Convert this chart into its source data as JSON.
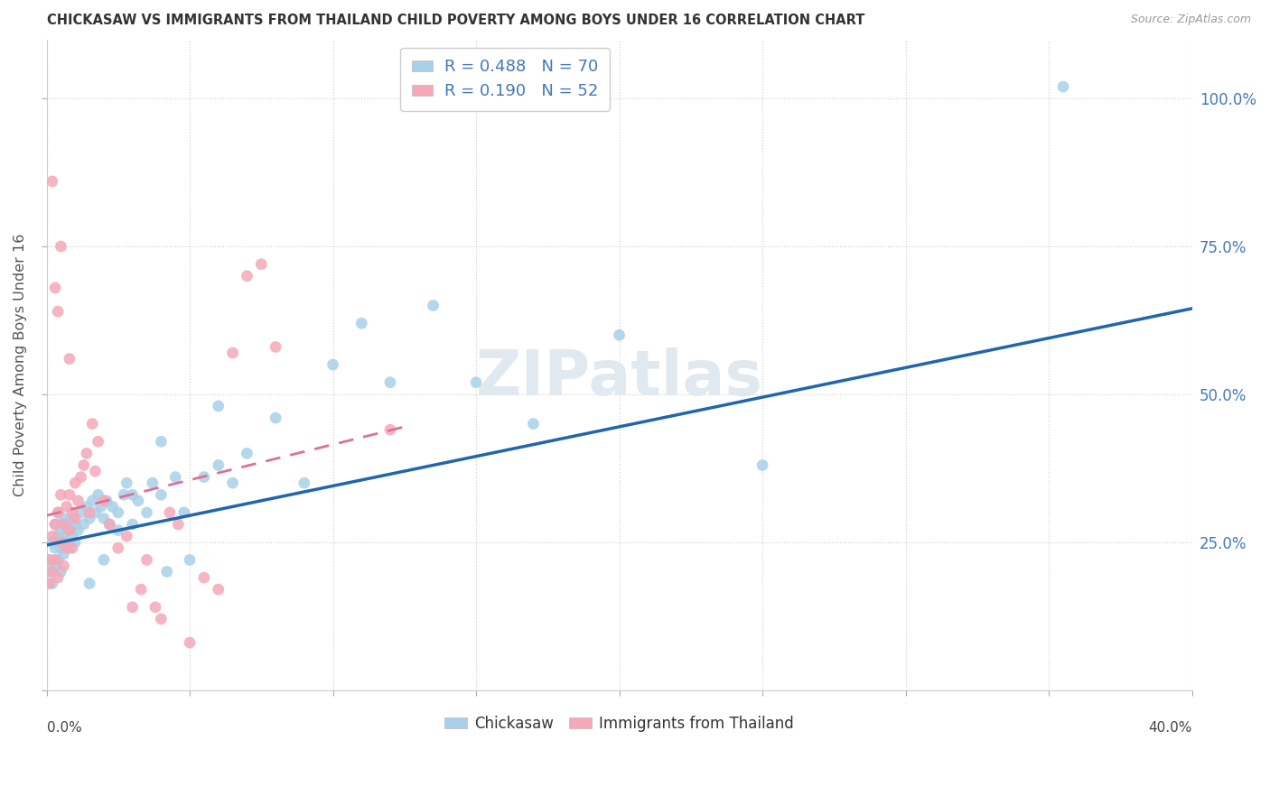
{
  "title": "CHICKASAW VS IMMIGRANTS FROM THAILAND CHILD POVERTY AMONG BOYS UNDER 16 CORRELATION CHART",
  "source": "Source: ZipAtlas.com",
  "ylabel": "Child Poverty Among Boys Under 16",
  "legend_label1": "Chickasaw",
  "legend_label2": "Immigrants from Thailand",
  "R1": 0.488,
  "N1": 70,
  "R2": 0.19,
  "N2": 52,
  "color_blue": "#a8d0e8",
  "color_pink": "#f4a8b8",
  "color_blue_line": "#2166ac",
  "color_pink_line": "#e07090",
  "color_blue_text": "#4477bb",
  "watermark": "ZIPatlas",
  "xlim": [
    0.0,
    0.4
  ],
  "ylim": [
    0.0,
    1.1
  ],
  "yticks": [
    0.0,
    0.25,
    0.5,
    0.75,
    1.0
  ],
  "yticklabels_right": [
    "",
    "25.0%",
    "50.0%",
    "75.0%",
    "100.0%"
  ],
  "blue_trend_x0": 0.0,
  "blue_trend_y0": 0.245,
  "blue_trend_x1": 0.4,
  "blue_trend_y1": 0.645,
  "pink_trend_x0": 0.0,
  "pink_trend_y0": 0.295,
  "pink_trend_x1": 0.125,
  "pink_trend_y1": 0.445,
  "chickasaw_x": [
    0.001,
    0.001,
    0.002,
    0.002,
    0.003,
    0.003,
    0.003,
    0.004,
    0.004,
    0.004,
    0.005,
    0.005,
    0.005,
    0.006,
    0.006,
    0.006,
    0.007,
    0.007,
    0.008,
    0.008,
    0.009,
    0.009,
    0.01,
    0.01,
    0.011,
    0.012,
    0.013,
    0.014,
    0.015,
    0.016,
    0.017,
    0.018,
    0.019,
    0.02,
    0.021,
    0.022,
    0.023,
    0.025,
    0.027,
    0.028,
    0.03,
    0.032,
    0.035,
    0.037,
    0.04,
    0.042,
    0.045,
    0.048,
    0.05,
    0.055,
    0.06,
    0.065,
    0.07,
    0.08,
    0.09,
    0.1,
    0.11,
    0.12,
    0.135,
    0.15,
    0.17,
    0.2,
    0.25,
    0.06,
    0.04,
    0.03,
    0.025,
    0.02,
    0.015,
    0.355
  ],
  "chickasaw_y": [
    0.2,
    0.22,
    0.18,
    0.25,
    0.21,
    0.24,
    0.28,
    0.22,
    0.26,
    0.3,
    0.2,
    0.24,
    0.27,
    0.23,
    0.26,
    0.29,
    0.25,
    0.28,
    0.24,
    0.27,
    0.26,
    0.29,
    0.25,
    0.28,
    0.27,
    0.3,
    0.28,
    0.31,
    0.29,
    0.32,
    0.3,
    0.33,
    0.31,
    0.29,
    0.32,
    0.28,
    0.31,
    0.3,
    0.33,
    0.35,
    0.28,
    0.32,
    0.3,
    0.35,
    0.33,
    0.2,
    0.36,
    0.3,
    0.22,
    0.36,
    0.38,
    0.35,
    0.4,
    0.46,
    0.35,
    0.55,
    0.62,
    0.52,
    0.65,
    0.52,
    0.45,
    0.6,
    0.38,
    0.48,
    0.42,
    0.33,
    0.27,
    0.22,
    0.18,
    1.02
  ],
  "thailand_x": [
    0.001,
    0.001,
    0.002,
    0.002,
    0.003,
    0.003,
    0.004,
    0.004,
    0.005,
    0.005,
    0.006,
    0.006,
    0.007,
    0.007,
    0.008,
    0.008,
    0.009,
    0.009,
    0.01,
    0.01,
    0.011,
    0.012,
    0.013,
    0.014,
    0.015,
    0.016,
    0.017,
    0.018,
    0.02,
    0.022,
    0.025,
    0.028,
    0.03,
    0.033,
    0.035,
    0.038,
    0.04,
    0.043,
    0.046,
    0.05,
    0.055,
    0.06,
    0.065,
    0.07,
    0.075,
    0.08,
    0.002,
    0.003,
    0.004,
    0.005,
    0.008,
    0.12
  ],
  "thailand_y": [
    0.18,
    0.22,
    0.2,
    0.26,
    0.22,
    0.28,
    0.19,
    0.3,
    0.25,
    0.33,
    0.21,
    0.28,
    0.24,
    0.31,
    0.27,
    0.33,
    0.24,
    0.3,
    0.29,
    0.35,
    0.32,
    0.36,
    0.38,
    0.4,
    0.3,
    0.45,
    0.37,
    0.42,
    0.32,
    0.28,
    0.24,
    0.26,
    0.14,
    0.17,
    0.22,
    0.14,
    0.12,
    0.3,
    0.28,
    0.08,
    0.19,
    0.17,
    0.57,
    0.7,
    0.72,
    0.58,
    0.86,
    0.68,
    0.64,
    0.75,
    0.56,
    0.44
  ]
}
